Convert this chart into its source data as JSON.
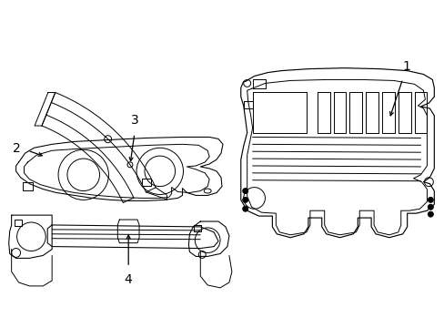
{
  "background_color": "#ffffff",
  "line_color": "#000000",
  "lw": 0.7,
  "fig_w": 4.89,
  "fig_h": 3.6,
  "dpi": 100
}
